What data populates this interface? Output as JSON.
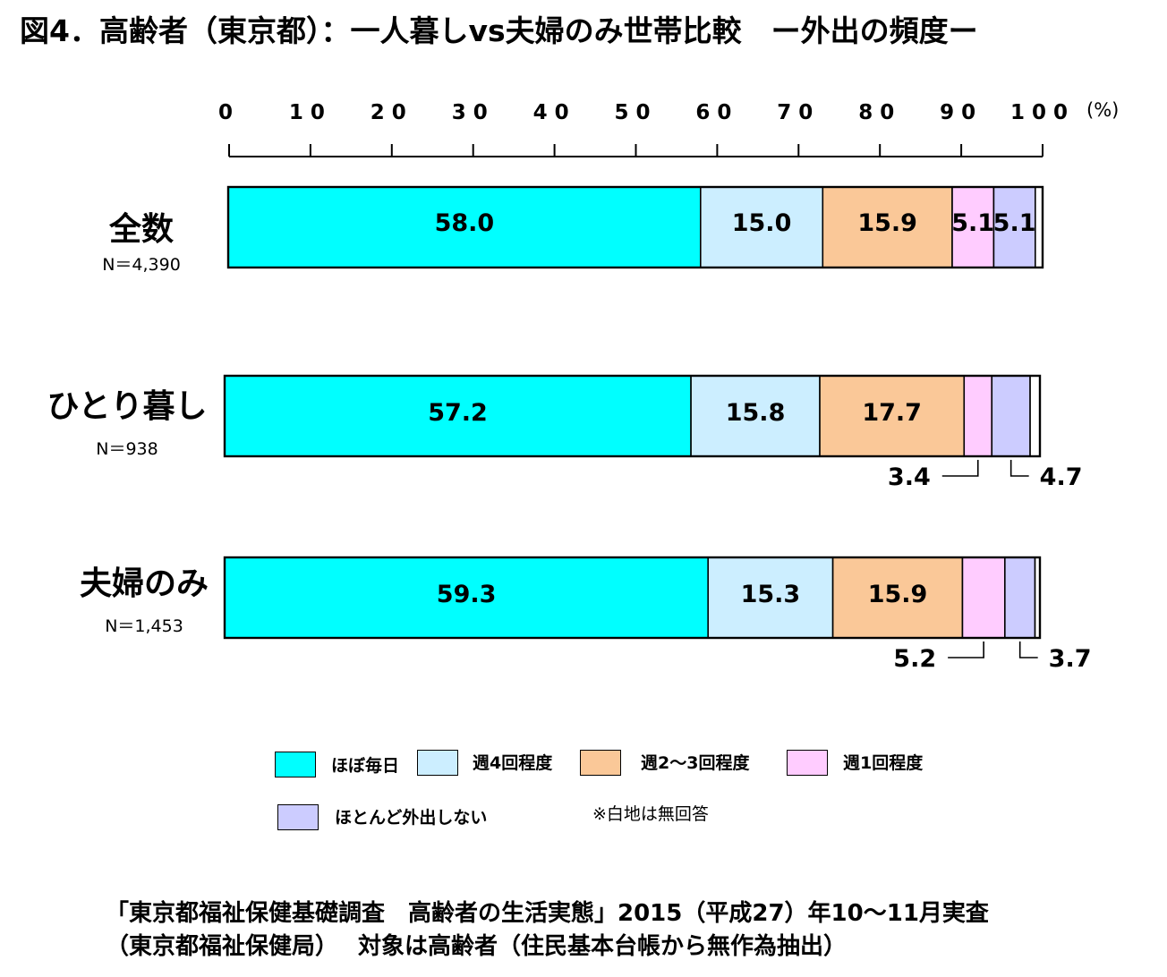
{
  "title": "図4．高齢者（東京都）：一人暮しvs夫婦のみ世帯比較　ー外出の頻度ー",
  "chart_data": {
    "type": "bar",
    "orientation": "horizontal",
    "stacked": true,
    "unit": "(%)",
    "xlim": [
      0,
      100
    ],
    "xticks": [
      "0",
      "10",
      "20",
      "30",
      "40",
      "50",
      "60",
      "70",
      "80",
      "90",
      "100"
    ],
    "categories": [
      {
        "label": "全数",
        "n": "N＝4,390"
      },
      {
        "label": "ひとり暮し",
        "n": "N＝938"
      },
      {
        "label": "夫婦のみ",
        "n": "N＝1,453"
      }
    ],
    "series": [
      {
        "name": "ほぼ毎日",
        "color": "#00ffff",
        "values": [
          58.0,
          57.2,
          59.3
        ],
        "labels": [
          "58.0",
          "57.2",
          "59.3"
        ]
      },
      {
        "name": "週4回程度",
        "color": "#cceeff",
        "values": [
          15.0,
          15.8,
          15.3
        ],
        "labels": [
          "15.0",
          "15.8",
          "15.3"
        ]
      },
      {
        "name": "週2～3回程度",
        "color": "#fac898",
        "values": [
          15.9,
          17.7,
          15.9
        ],
        "labels": [
          "15.9",
          "17.7",
          "15.9"
        ]
      },
      {
        "name": "週1回程度",
        "color": "#ffccff",
        "values": [
          5.1,
          3.4,
          5.2
        ],
        "labels": [
          "5.1",
          "3.4",
          "5.2"
        ]
      },
      {
        "name": "ほとんど外出しない",
        "color": "#ccccff",
        "values": [
          5.1,
          4.7,
          3.7
        ],
        "labels": [
          "5.1",
          "4.7",
          "3.7"
        ]
      }
    ],
    "note": "※白地は無回答"
  },
  "source": {
    "line1": "「東京都福祉保健基礎調査　高齢者の生活実態」2015（平成27）年10～11月実査",
    "line2": "（東京都福祉保健局）　 対象は高齢者（住民基本台帳から無作為抽出）"
  }
}
